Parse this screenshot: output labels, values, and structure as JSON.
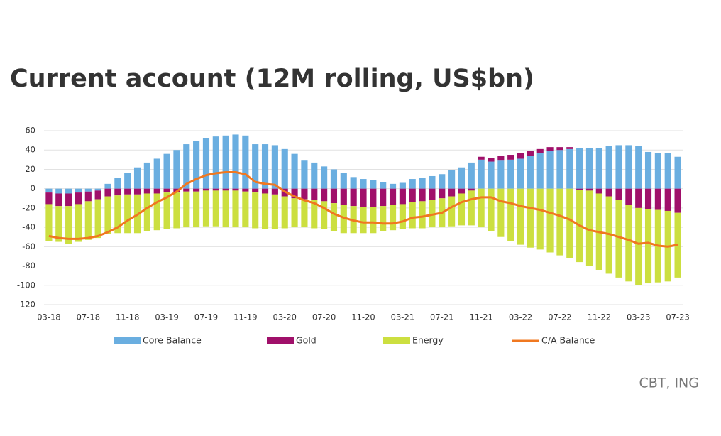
{
  "chart_data": {
    "type": "bar",
    "stacked": true,
    "title": "Current account (12M rolling, US$bn)",
    "source": "CBT, ING",
    "categories": [
      "03-18",
      null,
      null,
      null,
      "07-18",
      null,
      null,
      null,
      "11-18",
      null,
      null,
      null,
      "03-19",
      null,
      null,
      null,
      "07-19",
      null,
      null,
      null,
      "11-19",
      null,
      null,
      null,
      "03-20",
      null,
      null,
      null,
      "07-20",
      null,
      null,
      null,
      "11-20",
      null,
      null,
      null,
      "03-21",
      null,
      null,
      null,
      "07-21",
      null,
      null,
      null,
      "11-21",
      null,
      null,
      null,
      "03-22",
      null,
      null,
      null,
      "07-22",
      null,
      null,
      null,
      "11-22",
      null,
      null,
      null,
      "03-23",
      null,
      null,
      null,
      "07-23"
    ],
    "series": [
      {
        "name": "Core Balance",
        "color": "#6aaee0",
        "values": [
          -4,
          -5,
          -5,
          -4,
          -3,
          -2,
          5,
          11,
          16,
          22,
          27,
          31,
          36,
          40,
          46,
          49,
          52,
          54,
          55,
          56,
          55,
          46,
          46,
          45,
          41,
          36,
          29,
          27,
          23,
          20,
          16,
          12,
          10,
          9,
          7,
          5,
          6,
          10,
          11,
          13,
          15,
          19,
          22,
          27,
          30,
          28,
          29,
          30,
          31,
          34,
          37,
          39,
          40,
          41,
          42,
          42,
          42,
          44,
          45,
          45,
          44,
          38,
          37,
          37,
          33
        ]
      },
      {
        "name": "Gold",
        "color": "#a0106a",
        "values": [
          -12,
          -13,
          -13,
          -12,
          -10,
          -9,
          -8,
          -7,
          -6,
          -6,
          -5,
          -5,
          -4,
          -4,
          -3,
          -3,
          -2,
          -2,
          -2,
          -2,
          -3,
          -4,
          -5,
          -6,
          -8,
          -10,
          -11,
          -12,
          -13,
          -15,
          -17,
          -18,
          -19,
          -19,
          -18,
          -17,
          -16,
          -14,
          -13,
          -12,
          -10,
          -8,
          -5,
          -2,
          3,
          4,
          5,
          5,
          6,
          5,
          4,
          4,
          3,
          2,
          -1,
          -2,
          -5,
          -8,
          -12,
          -17,
          -20,
          -21,
          -22,
          -23,
          -25
        ]
      },
      {
        "name": "Energy",
        "color": "#ccdf40",
        "values": [
          -38,
          -37,
          -39,
          -39,
          -40,
          -40,
          -39,
          -39,
          -40,
          -40,
          -39,
          -38,
          -38,
          -37,
          -37,
          -37,
          -37,
          -37,
          -38,
          -38,
          -37,
          -37,
          -37,
          -36,
          -33,
          -30,
          -29,
          -29,
          -29,
          -29,
          -29,
          -28,
          -27,
          -27,
          -26,
          -26,
          -26,
          -27,
          -28,
          -28,
          -30,
          -31,
          -33,
          -36,
          -40,
          -44,
          -50,
          -54,
          -58,
          -61,
          -63,
          -66,
          -69,
          -72,
          -75,
          -78,
          -79,
          -80,
          -80,
          -79,
          -80,
          -77,
          -75,
          -73,
          -67
        ]
      },
      {
        "name": "C/A Balance",
        "type": "line",
        "color": "#f07820",
        "values": [
          -49,
          -51,
          -52,
          -52,
          -51,
          -49,
          -45,
          -40,
          -33,
          -27,
          -20,
          -14,
          -9,
          -3,
          5,
          10,
          14,
          16,
          17,
          17,
          15,
          7,
          5,
          4,
          -3,
          -8,
          -12,
          -15,
          -20,
          -26,
          -30,
          -33,
          -35,
          -35,
          -36,
          -36,
          -34,
          -30,
          -29,
          -27,
          -25,
          -19,
          -14,
          -11,
          -9,
          -9,
          -13,
          -15,
          -18,
          -20,
          -22,
          -25,
          -28,
          -32,
          -38,
          -43,
          -45,
          -47,
          -50,
          -53,
          -57,
          -56,
          -59,
          -60,
          -58
        ]
      }
    ],
    "ylim": [
      -120,
      60
    ],
    "yticks": [
      -120,
      -100,
      -80,
      -60,
      -40,
      -20,
      0,
      20,
      40,
      60
    ],
    "grid": true,
    "legend": "bottom"
  }
}
